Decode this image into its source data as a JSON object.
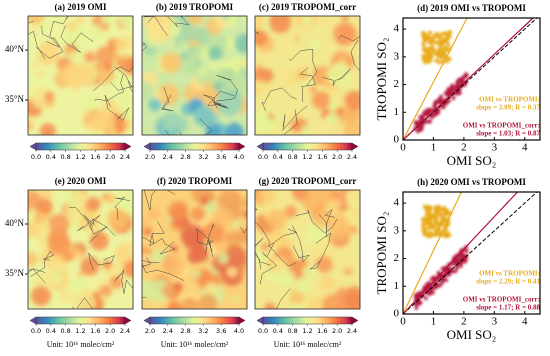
{
  "chart_data": [
    {
      "type": "map",
      "title": "(a) 2019 OMI",
      "ylim": [
        31.5,
        43.4
      ],
      "yticks": [
        {
          "value": 40,
          "label": "40°N"
        },
        {
          "value": 35,
          "label": "35°N"
        }
      ],
      "clim": [
        0,
        2.4
      ],
      "cticks": [
        {
          "value": 0,
          "label": "0.0"
        },
        {
          "value": 0.4,
          "label": "0.4"
        },
        {
          "value": 0.8,
          "label": "0.8"
        },
        {
          "value": 1.2,
          "label": "1.2"
        },
        {
          "value": 1.6,
          "label": "1.6"
        },
        {
          "value": 2,
          "label": "2.0"
        },
        {
          "value": 2.4,
          "label": "2.4"
        }
      ]
    },
    {
      "type": "map",
      "title": "(b) 2019 TROPOMI",
      "clim": [
        2,
        4
      ],
      "cticks": [
        {
          "value": 2,
          "label": "2.0"
        },
        {
          "value": 2.4,
          "label": "2.4"
        },
        {
          "value": 2.8,
          "label": "2.8"
        },
        {
          "value": 3.2,
          "label": "3.2"
        },
        {
          "value": 3.6,
          "label": "3.6"
        },
        {
          "value": 4,
          "label": "4.0"
        }
      ]
    },
    {
      "type": "map",
      "title": "(c) 2019 TROPOMI_corr",
      "clim": [
        0,
        2.4
      ],
      "cticks": [
        {
          "value": 0,
          "label": "0.0"
        },
        {
          "value": 0.4,
          "label": "0.4"
        },
        {
          "value": 0.8,
          "label": "0.8"
        },
        {
          "value": 1.2,
          "label": "1.2"
        },
        {
          "value": 1.6,
          "label": "1.6"
        },
        {
          "value": 2,
          "label": "2.0"
        },
        {
          "value": 2.4,
          "label": "2.4"
        }
      ]
    },
    {
      "type": "scatter",
      "title": "(d) 2019 OMI vs TROPOMI",
      "x_label": "OMI SO₂",
      "y_label": "TROPOMI SO₂",
      "xlim": [
        0,
        4.5
      ],
      "ylim": [
        0,
        4.4
      ],
      "xticks": [
        0,
        1,
        2,
        3,
        4
      ],
      "yticks": [
        0,
        1,
        2,
        3,
        4
      ],
      "reference_line": true,
      "series": [
        {
          "name": "OMI vs TROPOMI:",
          "annotation": "slope = 2.09; R = 0.37",
          "slope": 2.09,
          "color": "#e8ac1c"
        },
        {
          "name": "OMI vs TROPOMI_corr:",
          "annotation": "slope = 1.03; R = 0.87",
          "slope": 1.03,
          "color": "#b3123a"
        }
      ]
    },
    {
      "type": "map",
      "title": "(e) 2020 OMI",
      "ylim": [
        31.5,
        43.4
      ],
      "yticks": [
        {
          "value": 40,
          "label": "40°N"
        },
        {
          "value": 35,
          "label": "35°N"
        }
      ],
      "clim": [
        0,
        2.4
      ],
      "cticks": [
        {
          "value": 0,
          "label": "0.0"
        },
        {
          "value": 0.4,
          "label": "0.4"
        },
        {
          "value": 0.8,
          "label": "0.8"
        },
        {
          "value": 1.2,
          "label": "1.2"
        },
        {
          "value": 1.6,
          "label": "1.6"
        },
        {
          "value": 2,
          "label": "2.0"
        },
        {
          "value": 2.4,
          "label": "2.4"
        }
      ],
      "unit_label": "Unit: 10¹⁶ molec/cm²"
    },
    {
      "type": "map",
      "title": "(f) 2020 TROPOMI",
      "clim": [
        2,
        4
      ],
      "cticks": [
        {
          "value": 2,
          "label": "2.0"
        },
        {
          "value": 2.4,
          "label": "2.4"
        },
        {
          "value": 2.8,
          "label": "2.8"
        },
        {
          "value": 3.2,
          "label": "3.2"
        },
        {
          "value": 3.6,
          "label": "3.6"
        },
        {
          "value": 4,
          "label": "4.0"
        }
      ],
      "unit_label": "Unit: 10¹⁶ molec/cm²"
    },
    {
      "type": "map",
      "title": "(g) 2020 TROPOMI_corr",
      "clim": [
        0,
        2.4
      ],
      "cticks": [
        {
          "value": 0,
          "label": "0.0"
        },
        {
          "value": 0.4,
          "label": "0.4"
        },
        {
          "value": 0.8,
          "label": "0.8"
        },
        {
          "value": 1.2,
          "label": "1.2"
        },
        {
          "value": 1.6,
          "label": "1.6"
        },
        {
          "value": 2,
          "label": "2.0"
        },
        {
          "value": 2.4,
          "label": "2.4"
        }
      ],
      "unit_label": "Unit: 10¹⁶ molec/cm²"
    },
    {
      "type": "scatter",
      "title": "(h) 2020 OMI vs TROPOMI",
      "x_label": "OMI SO₂",
      "y_label": "TROPOMI SO₂",
      "xlim": [
        0,
        4.5
      ],
      "ylim": [
        0,
        4.4
      ],
      "xticks": [
        0,
        1,
        2,
        3,
        4
      ],
      "yticks": [
        0,
        1,
        2,
        3,
        4
      ],
      "reference_line": true,
      "series": [
        {
          "name": "OMI vs TROPOMI:",
          "annotation": "slope = 2.29; R = 0.41",
          "slope": 2.29,
          "color": "#e8ac1c"
        },
        {
          "name": "OMI vs TROPOMI_corr:",
          "annotation": "slope = 1.17; R = 0.88",
          "slope": 1.17,
          "color": "#b3123a"
        }
      ]
    }
  ]
}
